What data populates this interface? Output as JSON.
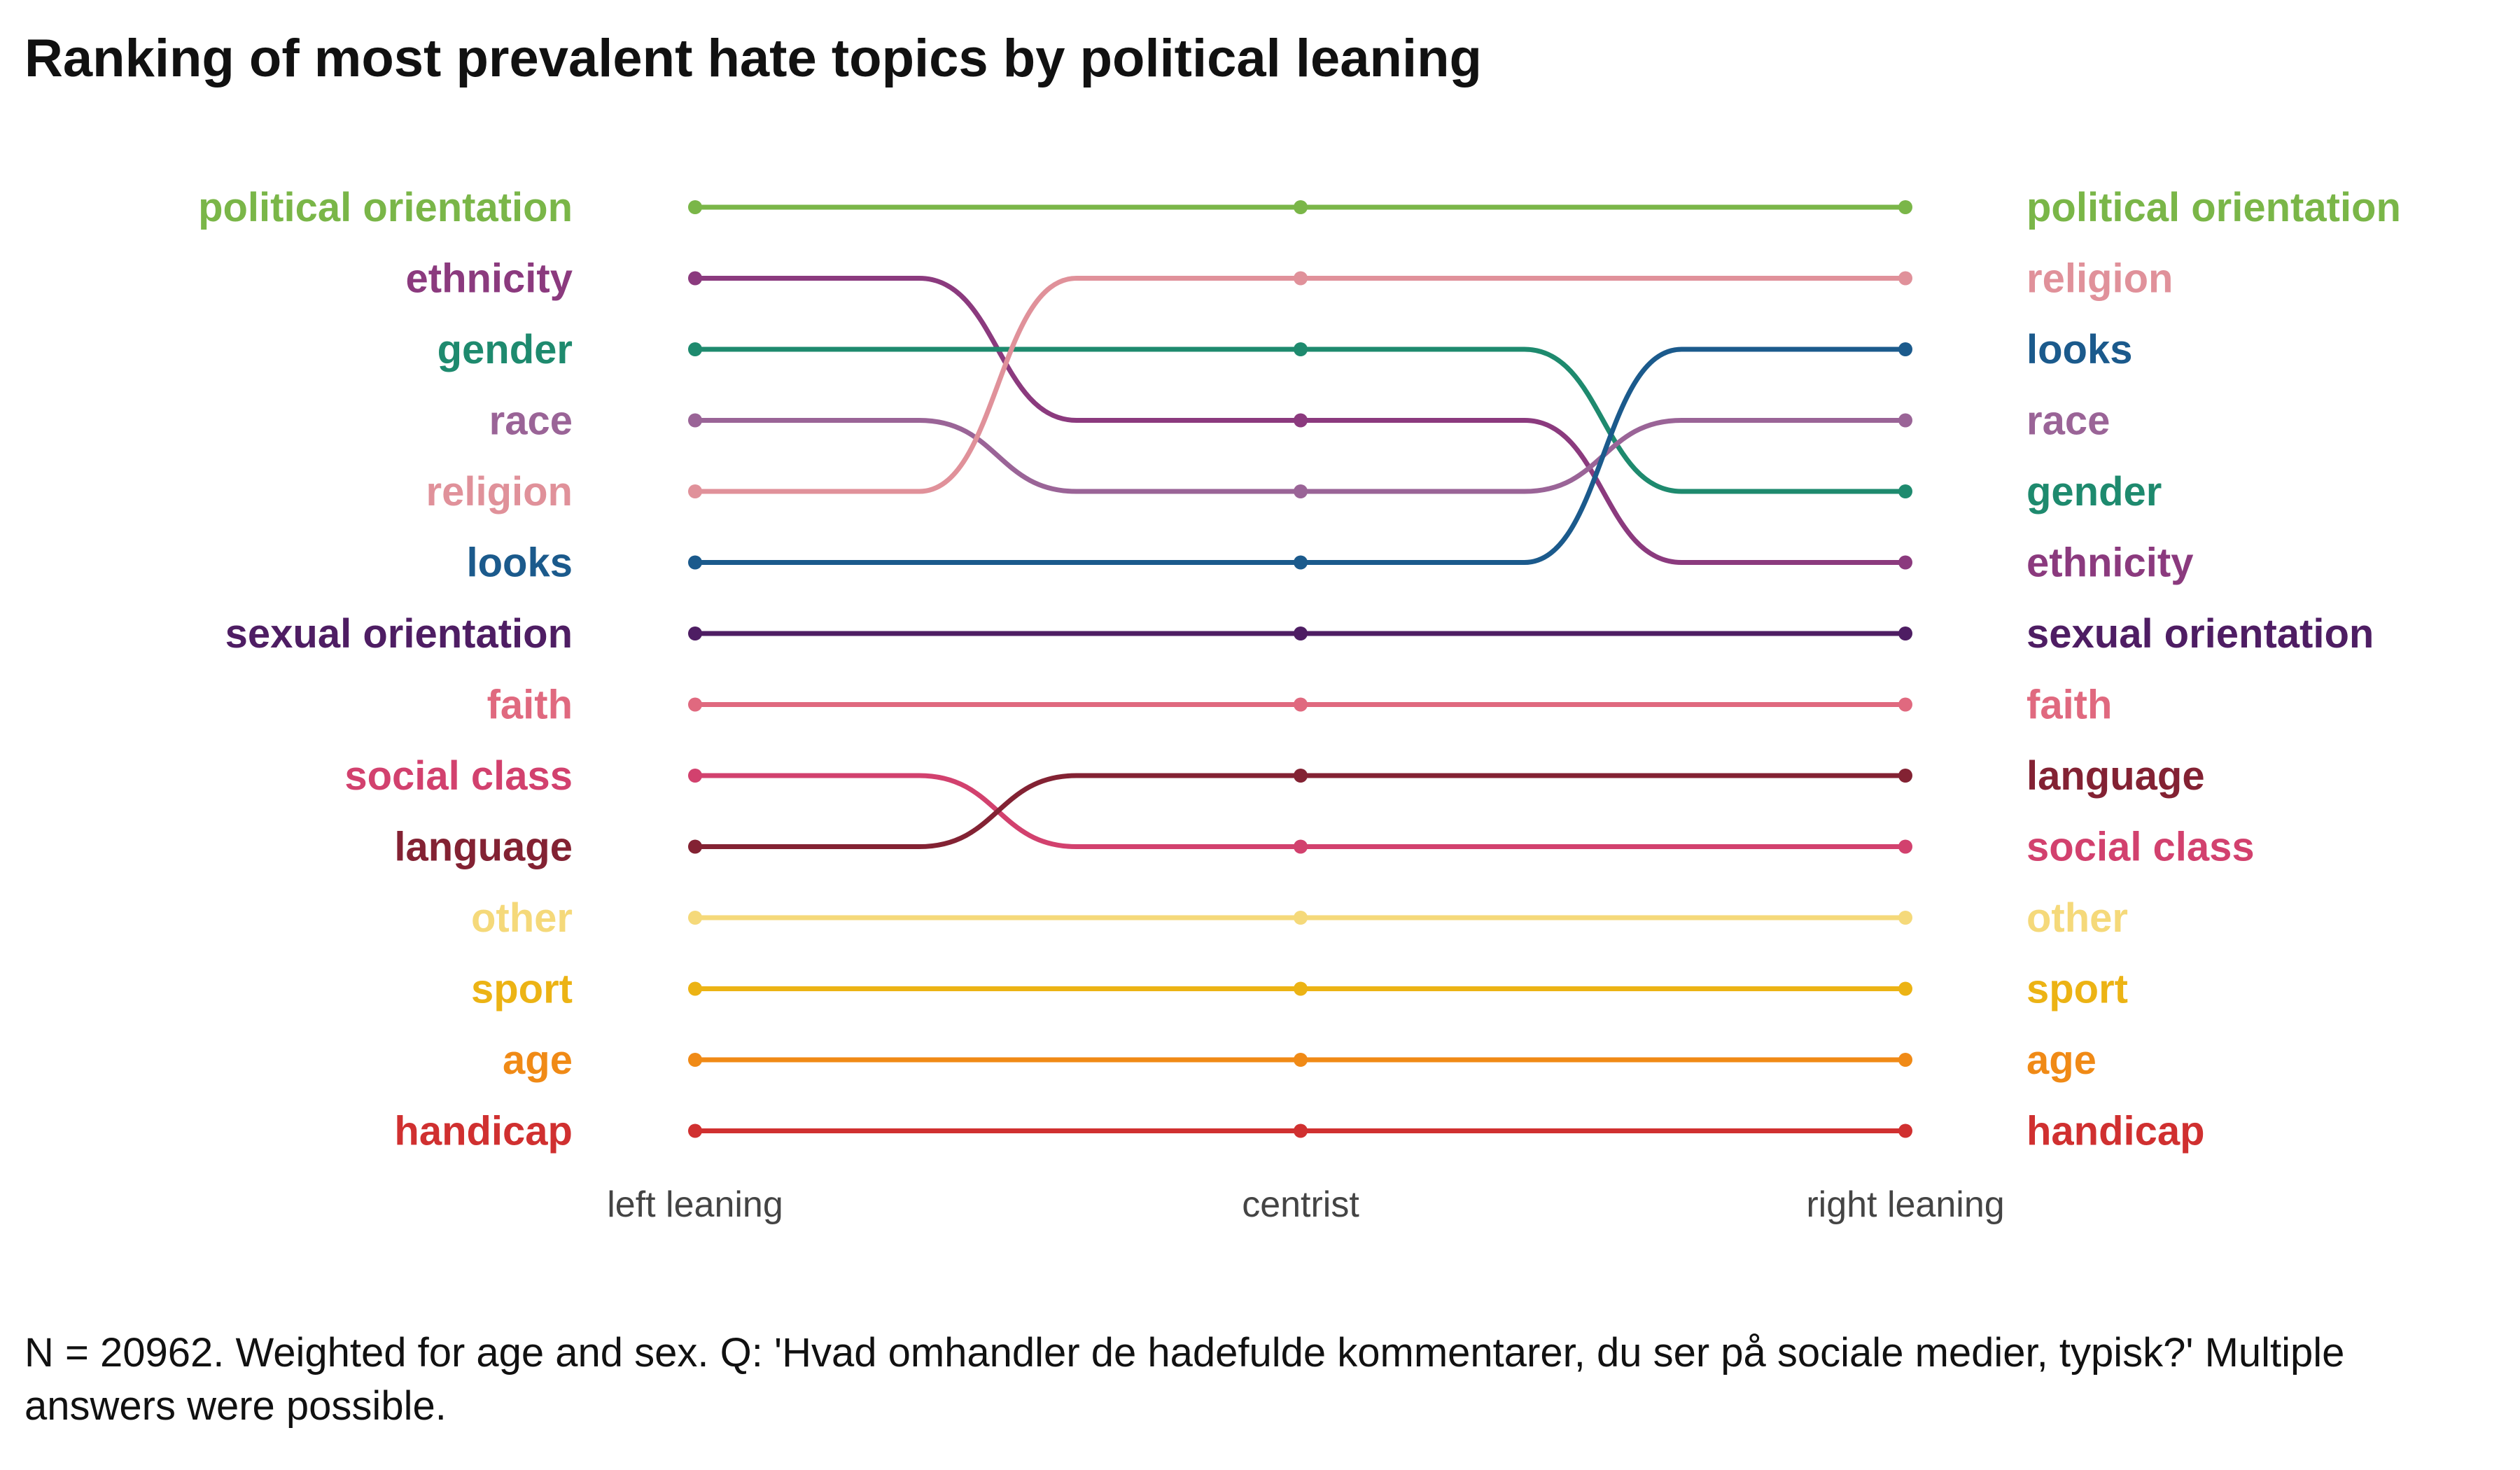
{
  "title": "Ranking of most prevalent hate topics by political leaning",
  "caption": "N = 20962. Weighted for age and sex. Q: 'Hvad omhandler de hadefulde kommentarer, du ser på sociale medier, typisk?' Multiple answers were possible.",
  "chart_data": {
    "type": "line",
    "subtype": "bump",
    "x": [
      "left leaning",
      "centrist",
      "right leaning"
    ],
    "rank_axis": "1 = top",
    "grid": false,
    "legend": "direct labels at left and right",
    "series": [
      {
        "name": "political orientation",
        "color": "#7ab648",
        "ranks": [
          1,
          1,
          1
        ]
      },
      {
        "name": "ethnicity",
        "color": "#8b3a7e",
        "ranks": [
          2,
          4,
          6
        ]
      },
      {
        "name": "gender",
        "color": "#1e8a6e",
        "ranks": [
          3,
          3,
          5
        ]
      },
      {
        "name": "race",
        "color": "#9a6497",
        "ranks": [
          4,
          5,
          4
        ]
      },
      {
        "name": "religion",
        "color": "#e0919a",
        "ranks": [
          5,
          2,
          2
        ]
      },
      {
        "name": "looks",
        "color": "#1b5a8c",
        "ranks": [
          6,
          6,
          3
        ]
      },
      {
        "name": "sexual orientation",
        "color": "#4e1d63",
        "ranks": [
          7,
          7,
          7
        ]
      },
      {
        "name": "faith",
        "color": "#e0697f",
        "ranks": [
          8,
          8,
          8
        ]
      },
      {
        "name": "social class",
        "color": "#d2416e",
        "ranks": [
          9,
          10,
          10
        ]
      },
      {
        "name": "language",
        "color": "#832233",
        "ranks": [
          10,
          9,
          9
        ]
      },
      {
        "name": "other",
        "color": "#f5d97a",
        "ranks": [
          11,
          11,
          11
        ]
      },
      {
        "name": "sport",
        "color": "#ecb314",
        "ranks": [
          12,
          12,
          12
        ]
      },
      {
        "name": "age",
        "color": "#f08a16",
        "ranks": [
          13,
          13,
          13
        ]
      },
      {
        "name": "handicap",
        "color": "#d03030",
        "ranks": [
          14,
          14,
          14
        ]
      }
    ]
  }
}
